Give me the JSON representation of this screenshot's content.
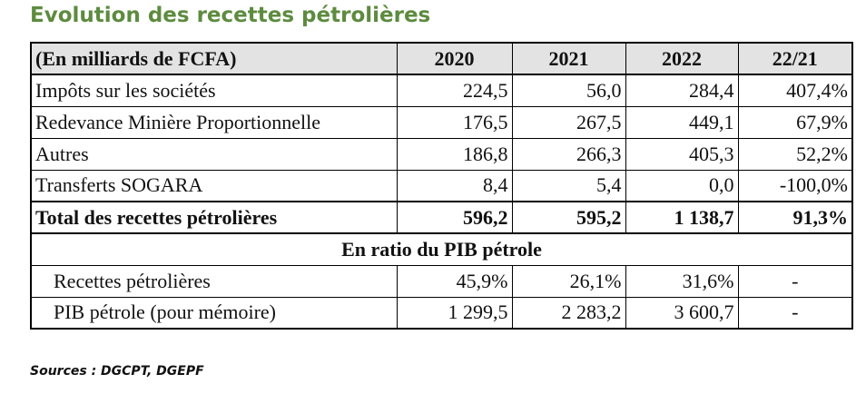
{
  "title": "Evolution des recettes pétrolières",
  "table": {
    "header": [
      "(En milliards de FCFA)",
      "2020",
      "2021",
      "2022",
      "22/21"
    ],
    "rows": [
      [
        "Impôts sur les sociétés",
        "224,5",
        "56,0",
        "284,4",
        "407,4%"
      ],
      [
        "Redevance Minière Proportionnelle",
        "176,5",
        "267,5",
        "449,1",
        "67,9%"
      ],
      [
        "Autres",
        "186,8",
        "266,3",
        "405,3",
        "52,2%"
      ],
      [
        "Transferts SOGARA",
        "8,4",
        "5,4",
        "0,0",
        "-100,0%"
      ]
    ],
    "total": [
      "Total des recettes pétrolières",
      "596,2",
      "595,2",
      "1 138,7",
      "91,3%"
    ],
    "section": "En ratio du PIB pétrole",
    "ratio_rows": [
      [
        "Recettes pétrolières",
        "45,9%",
        "26,1%",
        "31,6%",
        "-"
      ],
      [
        "PIB pétrole (pour mémoire)",
        "1 299,5",
        "2 283,2",
        "3 600,7",
        "-"
      ]
    ]
  },
  "source": "Sources : DGCPT, DGEPF"
}
